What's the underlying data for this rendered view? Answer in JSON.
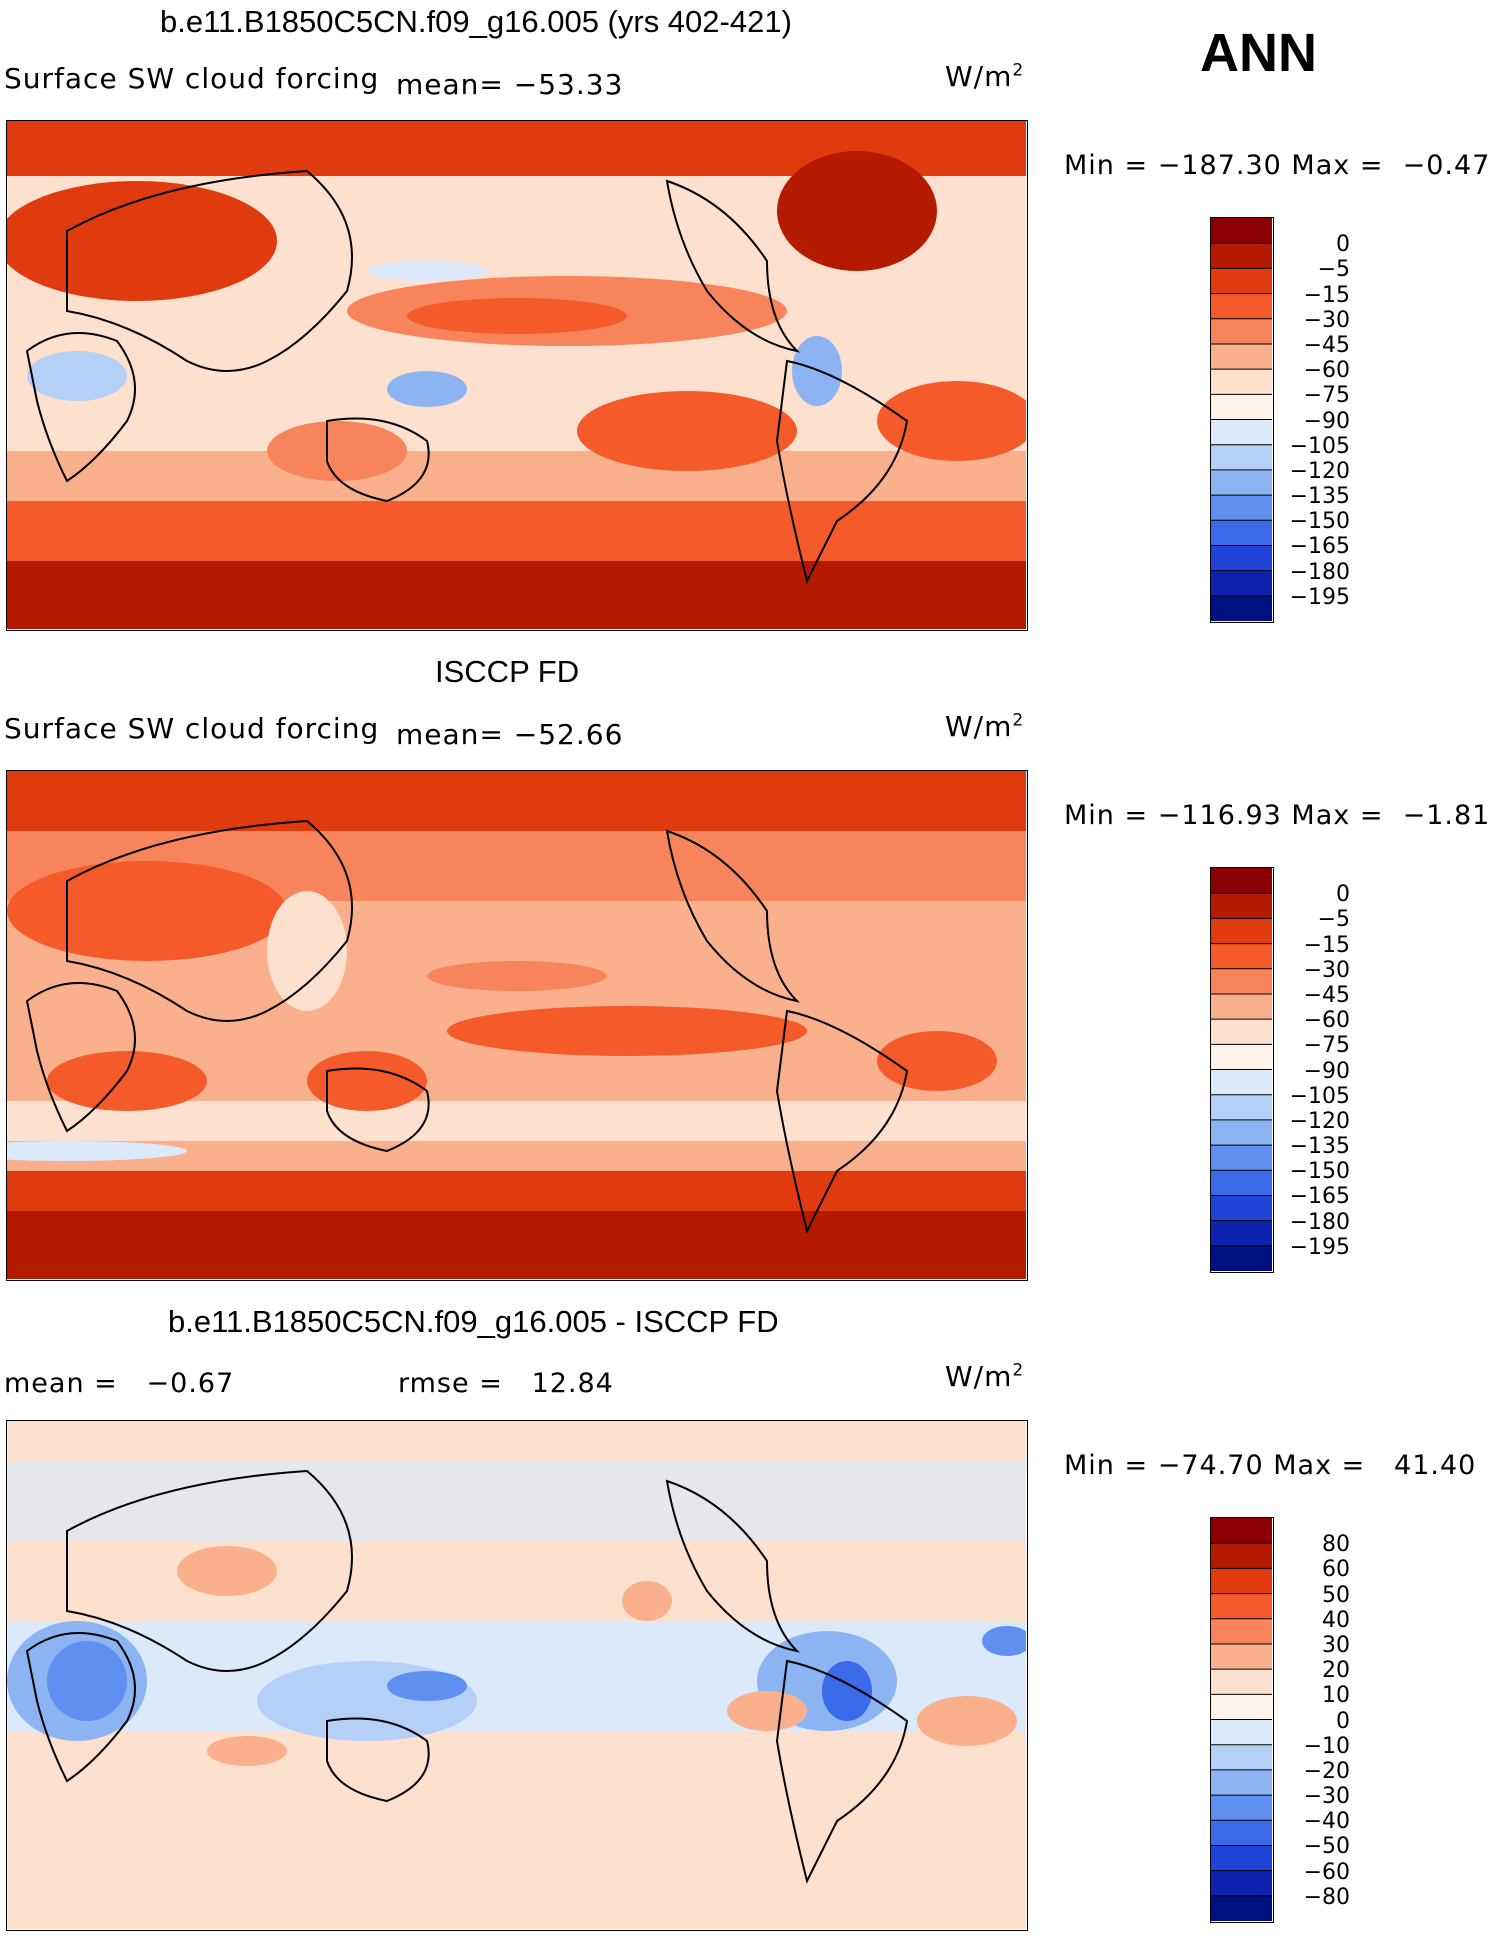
{
  "season": "ANN",
  "unit_prefix": "W/m",
  "unit_sup": "2",
  "panels": [
    {
      "title": "b.e11.B1850C5CN.f09_g16.005 (yrs 402-421)",
      "variable": "Surface SW cloud forcing",
      "mean_label": "mean=",
      "mean_value": "−53.33",
      "min_label": "Min =",
      "min_value": "−187.30",
      "max_label": "Max =",
      "max_value": "−0.47",
      "levels": [
        "0",
        "−5",
        "−15",
        "−30",
        "−45",
        "−60",
        "−75",
        "−90",
        "−105",
        "−120",
        "−135",
        "−150",
        "−165",
        "−180",
        "−195"
      ]
    },
    {
      "title": "ISCCP FD",
      "variable": "Surface SW cloud forcing",
      "mean_label": "mean=",
      "mean_value": "−52.66",
      "min_label": "Min =",
      "min_value": "−116.93",
      "max_label": "Max =",
      "max_value": "−1.81",
      "levels": [
        "0",
        "−5",
        "−15",
        "−30",
        "−45",
        "−60",
        "−75",
        "−90",
        "−105",
        "−120",
        "−135",
        "−150",
        "−165",
        "−180",
        "−195"
      ]
    },
    {
      "title": "b.e11.B1850C5CN.f09_g16.005 - ISCCP FD",
      "mean_label": "mean =",
      "mean_value": "−0.67",
      "rmse_label": "rmse =",
      "rmse_value": "12.84",
      "min_label": "Min =",
      "min_value": "−74.70",
      "max_label": "Max =",
      "max_value": "41.40",
      "levels": [
        "80",
        "60",
        "50",
        "40",
        "30",
        "20",
        "10",
        "0",
        "−10",
        "−20",
        "−30",
        "−40",
        "−50",
        "−60",
        "−80"
      ]
    }
  ],
  "colors": {
    "abs_scale": [
      "#8b0000",
      "#b31a00",
      "#e03a0f",
      "#f45a2a",
      "#f7845a",
      "#fab08c",
      "#fde0cd",
      "#fff3ea",
      "#dbe9fb",
      "#b5d0f7",
      "#8cb3f2",
      "#5f8ff0",
      "#3a6ae8",
      "#1f43d6",
      "#0b23b0",
      "#001080"
    ],
    "diff_scale": [
      "#8b0000",
      "#b31a00",
      "#e03a0f",
      "#f45a2a",
      "#f7845a",
      "#fab08c",
      "#fde0cd",
      "#fff3ea",
      "#dbe9fb",
      "#b5d0f7",
      "#8cb3f2",
      "#5f8ff0",
      "#3a6ae8",
      "#1f43d6",
      "#0b23b0",
      "#001080"
    ]
  }
}
